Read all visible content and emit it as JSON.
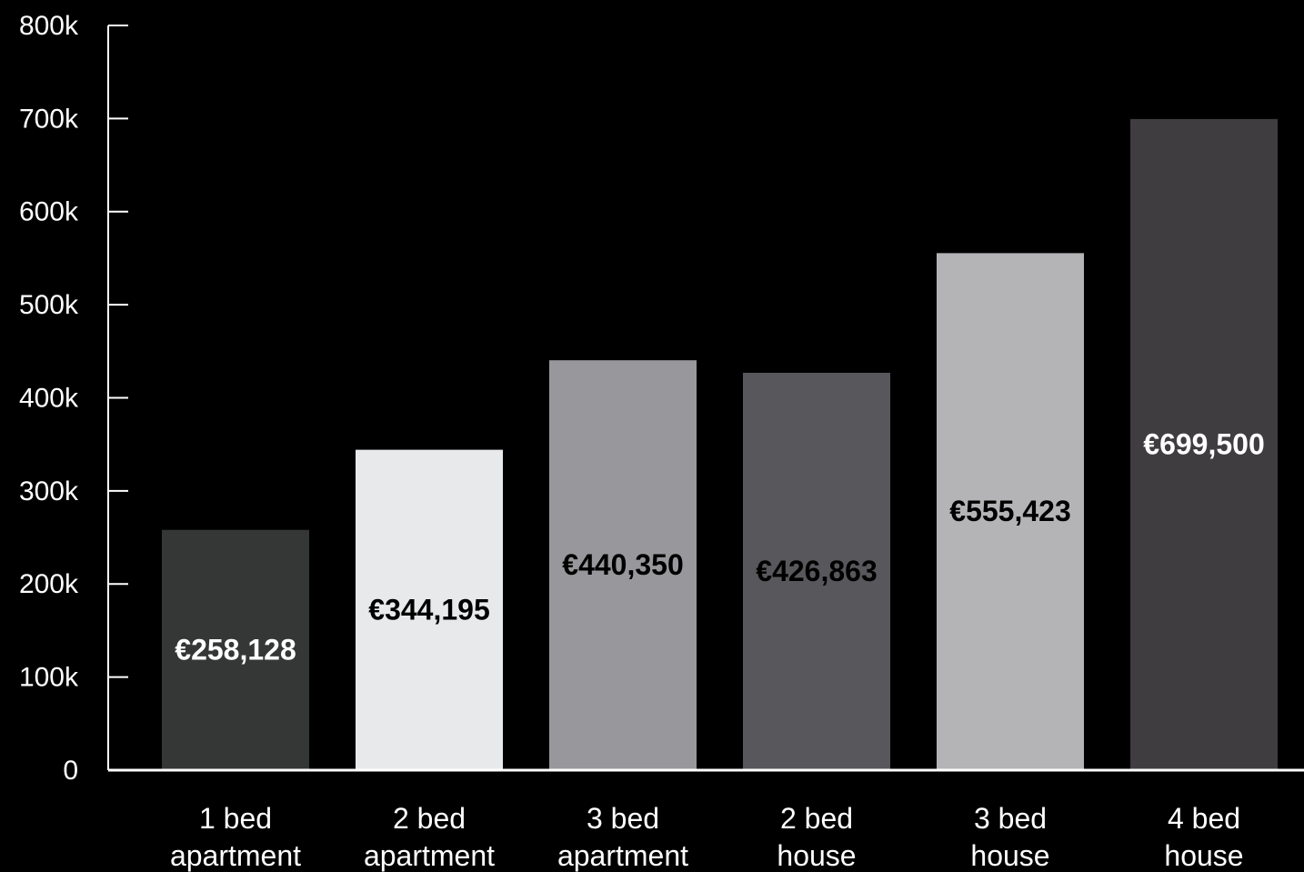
{
  "chart_data": {
    "type": "bar",
    "categories": [
      "1 bed apartment",
      "2 bed apartment",
      "3 bed apartment",
      "2 bed house",
      "3 bed house",
      "4 bed house"
    ],
    "values": [
      258128,
      344195,
      440350,
      426863,
      555423,
      699500
    ],
    "value_labels": [
      "€258,128",
      "€344,195",
      "€440,350",
      "€426,863",
      "€555,423",
      "€699,500"
    ],
    "colors": [
      "#353737",
      "#e8e9eb",
      "#98979b",
      "#58575b",
      "#b4b4b6",
      "#3f3d3f"
    ],
    "label_colors": [
      "#ffffff",
      "#000000",
      "#000000",
      "#000000",
      "#000000",
      "#ffffff"
    ],
    "ylim": [
      0,
      800000
    ],
    "yticks": [
      0,
      {
        "value": 100000,
        "label": "100k"
      },
      {
        "value": 200000,
        "label": "200k"
      },
      {
        "value": 300000,
        "label": "300k"
      },
      {
        "value": 400000,
        "label": "400k"
      },
      {
        "value": 500000,
        "label": "500k"
      },
      {
        "value": 600000,
        "label": "600k"
      },
      {
        "value": 700000,
        "label": "700k"
      },
      {
        "value": 800000,
        "label": "800k"
      }
    ]
  }
}
